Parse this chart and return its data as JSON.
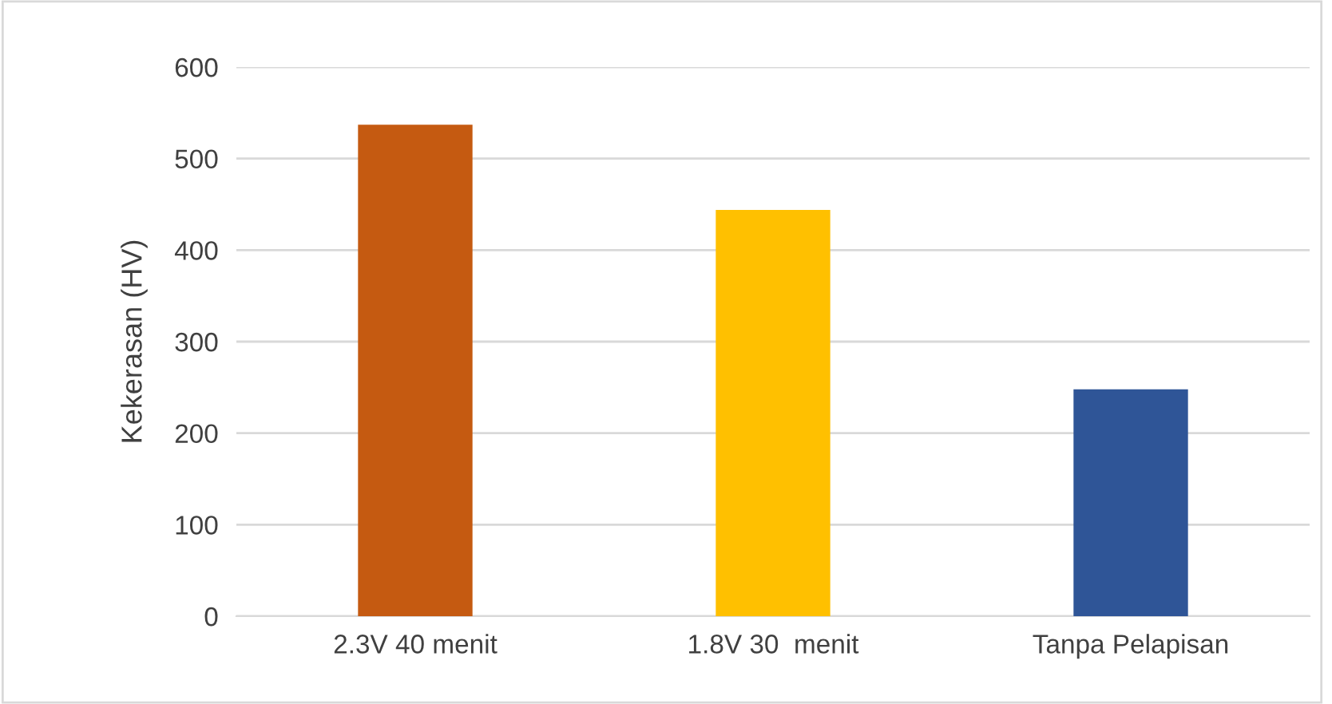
{
  "chart_data": {
    "type": "bar",
    "ylabel": "Kekerasan (HV)",
    "categories": [
      "2.3V 40 menit",
      "1.8V 30  menit",
      "Tanpa Pelapisan"
    ],
    "values": [
      537,
      444,
      248
    ],
    "colors": [
      "#c55a11",
      "#ffc000",
      "#2f5597"
    ],
    "ylim": [
      0,
      600
    ],
    "yticks": [
      0,
      100,
      200,
      300,
      400,
      500,
      600
    ],
    "grid": "y",
    "legend": false
  }
}
